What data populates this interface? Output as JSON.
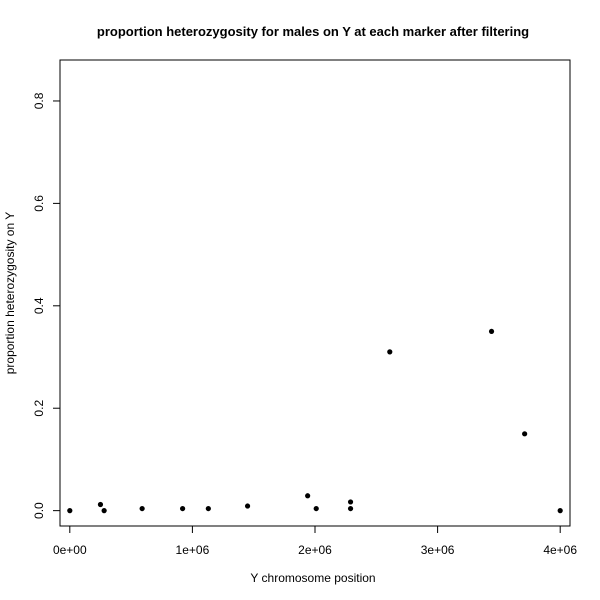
{
  "chart_data": {
    "type": "scatter",
    "title": "proportion heterozygosity for males on Y at each marker after filtering",
    "xlabel": "Y chromosome position",
    "ylabel": "proportion heterozygosity on Y",
    "xlim": [
      -80000,
      4080000
    ],
    "ylim": [
      -0.03,
      0.88
    ],
    "x_ticks": [
      0,
      1000000,
      2000000,
      3000000,
      4000000
    ],
    "x_tick_labels": [
      "0e+00",
      "1e+06",
      "2e+06",
      "3e+06",
      "4e+06"
    ],
    "y_ticks": [
      0.0,
      0.2,
      0.4,
      0.6,
      0.8
    ],
    "y_tick_labels": [
      "0.0",
      "0.2",
      "0.4",
      "0.6",
      "0.8"
    ],
    "grid": false,
    "legend": "none",
    "point_color": "#000000",
    "points": [
      {
        "x": 0,
        "y": 0.0
      },
      {
        "x": 250000,
        "y": 0.012
      },
      {
        "x": 280000,
        "y": 0.0
      },
      {
        "x": 590000,
        "y": 0.004
      },
      {
        "x": 920000,
        "y": 0.004
      },
      {
        "x": 1130000,
        "y": 0.004
      },
      {
        "x": 1450000,
        "y": 0.009
      },
      {
        "x": 1940000,
        "y": 0.029
      },
      {
        "x": 2010000,
        "y": 0.004
      },
      {
        "x": 2290000,
        "y": 0.017
      },
      {
        "x": 2290000,
        "y": 0.004
      },
      {
        "x": 2610000,
        "y": 0.31
      },
      {
        "x": 3440000,
        "y": 0.35
      },
      {
        "x": 3710000,
        "y": 0.15
      },
      {
        "x": 4000000,
        "y": 0.0
      }
    ]
  }
}
